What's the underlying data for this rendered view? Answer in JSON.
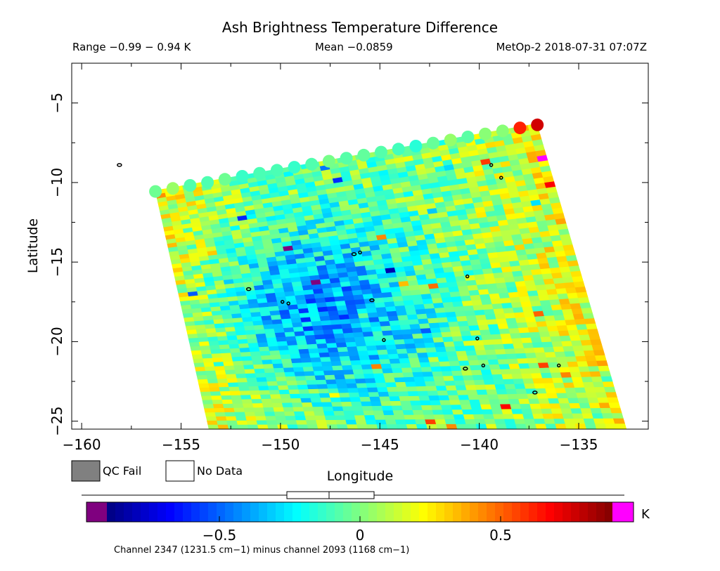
{
  "chart_data": {
    "type": "heatmap",
    "title": "Ash Brightness Temperature Difference",
    "range_text": "Range −0.99 − 0.94 K",
    "mean_text": "Mean −0.0859",
    "source_text": "MetOp-2 2018-07-31 07:07Z",
    "xlabel": "Longitude",
    "ylabel": "Latitude",
    "xlim": [
      -160.5,
      -131.5
    ],
    "ylim": [
      -25.5,
      -2.5
    ],
    "x_ticks": [
      -160,
      -155,
      -150,
      -145,
      -140,
      -135
    ],
    "x_tick_labels": [
      "−160",
      "−155",
      "−150",
      "−145",
      "−140",
      "−135"
    ],
    "y_ticks": [
      -5,
      -10,
      -15,
      -20,
      -25
    ],
    "y_tick_labels": [
      "−5",
      "−10",
      "−15",
      "−20",
      "−25"
    ],
    "swath_corners": [
      [
        -156.3,
        -10.5
      ],
      [
        -137.1,
        -6.3
      ],
      [
        -132.6,
        -25.5
      ],
      [
        -153.6,
        -25.5
      ]
    ],
    "value_min": -0.99,
    "value_max": 0.94,
    "colorbar": {
      "range": [
        -0.9,
        0.9
      ],
      "ticks": [
        -0.5,
        0,
        0.5
      ],
      "tick_labels": [
        "−0.5",
        "0",
        "0.5"
      ],
      "unit": "K",
      "caption": "Channel 2347 (1231.5 cm−1) minus channel 2093 (1168 cm−1)",
      "box_quartiles": [
        -0.26,
        -0.11,
        0.05
      ],
      "whisker_range": [
        -0.99,
        0.94
      ]
    },
    "legend": {
      "qc_fail_label": "QC Fail",
      "no_data_label": "No Data",
      "qc_fail_color": "#808080",
      "no_data_color": "#ffffff"
    }
  }
}
